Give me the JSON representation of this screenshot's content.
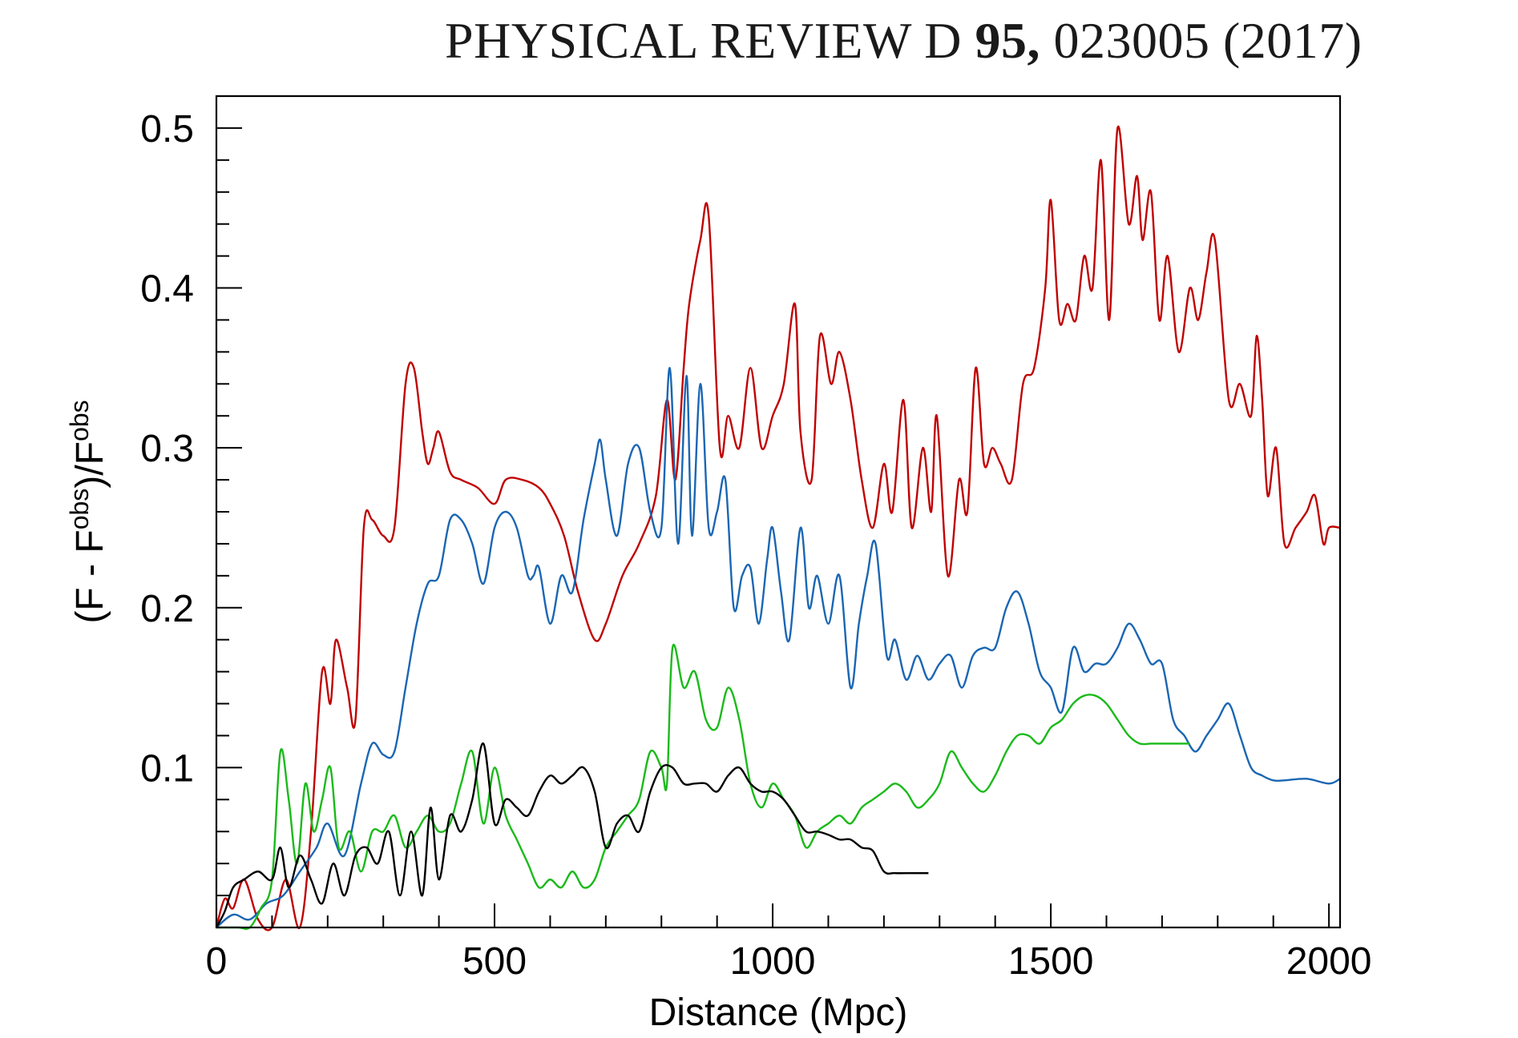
{
  "header": {
    "journal": "PHYSICAL REVIEW D",
    "volume": "95,",
    "article": "023005 (2017)"
  },
  "chart_data": {
    "type": "line",
    "title": "",
    "xlabel": "Distance (Mpc)",
    "ylabel_parts": {
      "open": "(F - F",
      "sup1": "obs",
      "mid": ")/F",
      "sup2": "obs"
    },
    "xlim": [
      0,
      2020
    ],
    "ylim": [
      0,
      0.52
    ],
    "x_ticks": [
      0,
      500,
      1000,
      1500,
      2000
    ],
    "x_tick_labels": [
      "0",
      "500",
      "1000",
      "1500",
      "2000"
    ],
    "y_ticks": [
      0.1,
      0.2,
      0.3,
      0.4,
      0.5
    ],
    "y_tick_labels": [
      "0.1",
      "0.2",
      "0.3",
      "0.4",
      "0.5"
    ],
    "x_minor_step": 100,
    "y_minor_step": 0.02,
    "series": [
      {
        "name": "red",
        "color": "#c00000",
        "x": [
          0,
          15,
          30,
          50,
          75,
          100,
          125,
          150,
          170,
          190,
          205,
          215,
          235,
          250,
          265,
          280,
          300,
          320,
          340,
          355,
          370,
          380,
          390,
          400,
          420,
          440,
          470,
          500,
          520,
          550,
          580,
          600,
          625,
          650,
          680,
          700,
          730,
          760,
          790,
          810,
          825,
          840,
          850,
          870,
          885,
          905,
          920,
          940,
          960,
          980,
          1000,
          1020,
          1040,
          1050,
          1070,
          1085,
          1105,
          1120,
          1140,
          1160,
          1180,
          1200,
          1215,
          1235,
          1250,
          1270,
          1285,
          1295,
          1315,
          1335,
          1350,
          1365,
          1380,
          1395,
          1410,
          1430,
          1450,
          1470,
          1490,
          1500,
          1515,
          1530,
          1545,
          1560,
          1575,
          1590,
          1605,
          1620,
          1640,
          1655,
          1665,
          1680,
          1695,
          1710,
          1730,
          1750,
          1765,
          1780,
          1795,
          1820,
          1840,
          1860,
          1870,
          1880,
          1890,
          1905,
          1920,
          1940,
          1960,
          1975,
          1990,
          2000,
          2020
        ],
        "y": [
          0,
          0.018,
          0.012,
          0.03,
          0.005,
          0.0,
          0.03,
          0.0,
          0.06,
          0.16,
          0.14,
          0.18,
          0.15,
          0.13,
          0.25,
          0.255,
          0.245,
          0.25,
          0.34,
          0.35,
          0.31,
          0.29,
          0.3,
          0.31,
          0.285,
          0.28,
          0.275,
          0.265,
          0.28,
          0.28,
          0.275,
          0.265,
          0.245,
          0.21,
          0.18,
          0.19,
          0.22,
          0.24,
          0.27,
          0.33,
          0.28,
          0.35,
          0.39,
          0.43,
          0.445,
          0.3,
          0.32,
          0.3,
          0.35,
          0.3,
          0.32,
          0.34,
          0.39,
          0.31,
          0.28,
          0.37,
          0.34,
          0.36,
          0.33,
          0.28,
          0.25,
          0.29,
          0.26,
          0.33,
          0.25,
          0.3,
          0.26,
          0.32,
          0.22,
          0.28,
          0.26,
          0.35,
          0.29,
          0.3,
          0.29,
          0.28,
          0.34,
          0.35,
          0.4,
          0.455,
          0.38,
          0.39,
          0.38,
          0.42,
          0.4,
          0.48,
          0.38,
          0.5,
          0.44,
          0.47,
          0.43,
          0.46,
          0.38,
          0.42,
          0.36,
          0.4,
          0.38,
          0.41,
          0.43,
          0.33,
          0.34,
          0.32,
          0.37,
          0.33,
          0.27,
          0.3,
          0.24,
          0.25,
          0.26,
          0.27,
          0.24,
          0.25,
          0.25
        ]
      },
      {
        "name": "blue",
        "color": "#1a66b3",
        "x": [
          0,
          30,
          60,
          90,
          120,
          150,
          180,
          200,
          230,
          260,
          280,
          300,
          320,
          340,
          360,
          380,
          400,
          420,
          440,
          460,
          480,
          500,
          520,
          540,
          560,
          570,
          580,
          600,
          620,
          640,
          660,
          680,
          690,
          700,
          720,
          740,
          760,
          780,
          800,
          815,
          830,
          845,
          855,
          870,
          885,
          900,
          915,
          930,
          945,
          960,
          975,
          990,
          1000,
          1015,
          1030,
          1050,
          1065,
          1080,
          1100,
          1120,
          1140,
          1155,
          1170,
          1185,
          1205,
          1220,
          1240,
          1260,
          1280,
          1300,
          1320,
          1340,
          1360,
          1380,
          1400,
          1420,
          1440,
          1460,
          1480,
          1500,
          1520,
          1540,
          1560,
          1580,
          1600,
          1620,
          1640,
          1660,
          1680,
          1700,
          1720,
          1740,
          1760,
          1780,
          1800,
          1820,
          1840,
          1860,
          1880,
          1900,
          1920,
          1960,
          2000,
          2020
        ],
        "y": [
          0,
          0.008,
          0.005,
          0.015,
          0.02,
          0.035,
          0.05,
          0.065,
          0.045,
          0.09,
          0.115,
          0.108,
          0.11,
          0.15,
          0.19,
          0.215,
          0.22,
          0.255,
          0.255,
          0.24,
          0.215,
          0.25,
          0.26,
          0.25,
          0.22,
          0.22,
          0.225,
          0.19,
          0.22,
          0.21,
          0.255,
          0.29,
          0.305,
          0.28,
          0.245,
          0.29,
          0.3,
          0.26,
          0.25,
          0.35,
          0.24,
          0.345,
          0.245,
          0.34,
          0.25,
          0.26,
          0.28,
          0.2,
          0.22,
          0.225,
          0.19,
          0.23,
          0.25,
          0.21,
          0.18,
          0.25,
          0.2,
          0.22,
          0.19,
          0.22,
          0.15,
          0.19,
          0.22,
          0.24,
          0.17,
          0.18,
          0.155,
          0.17,
          0.155,
          0.165,
          0.17,
          0.15,
          0.17,
          0.175,
          0.175,
          0.2,
          0.21,
          0.19,
          0.16,
          0.15,
          0.135,
          0.175,
          0.16,
          0.165,
          0.165,
          0.175,
          0.19,
          0.18,
          0.165,
          0.165,
          0.13,
          0.12,
          0.11,
          0.12,
          0.13,
          0.14,
          0.12,
          0.1,
          0.095,
          0.092,
          0.092,
          0.093,
          0.09,
          0.093
        ]
      },
      {
        "name": "green",
        "color": "#1aba1a",
        "x": [
          0,
          20,
          40,
          60,
          80,
          100,
          115,
          130,
          145,
          160,
          175,
          190,
          205,
          220,
          240,
          260,
          280,
          300,
          320,
          340,
          360,
          380,
          400,
          420,
          440,
          460,
          480,
          500,
          520,
          540,
          560,
          580,
          600,
          620,
          640,
          660,
          680,
          700,
          720,
          740,
          760,
          780,
          800,
          810,
          820,
          840,
          860,
          880,
          900,
          920,
          940,
          960,
          980,
          1000,
          1020,
          1040,
          1060,
          1080,
          1100,
          1120,
          1140,
          1160,
          1180,
          1200,
          1220,
          1240,
          1260,
          1280,
          1300,
          1320,
          1340,
          1360,
          1380,
          1400,
          1420,
          1440,
          1460,
          1480,
          1500,
          1520,
          1540,
          1560,
          1580,
          1600,
          1620,
          1640,
          1660,
          1680,
          1700,
          1720,
          1750
        ],
        "y": [
          0,
          0.0,
          0.0,
          0.0,
          0.012,
          0.03,
          0.11,
          0.08,
          0.04,
          0.09,
          0.06,
          0.08,
          0.1,
          0.05,
          0.06,
          0.035,
          0.06,
          0.06,
          0.07,
          0.05,
          0.06,
          0.07,
          0.06,
          0.065,
          0.09,
          0.11,
          0.065,
          0.1,
          0.07,
          0.055,
          0.04,
          0.025,
          0.03,
          0.025,
          0.035,
          0.025,
          0.03,
          0.05,
          0.06,
          0.07,
          0.08,
          0.11,
          0.1,
          0.09,
          0.175,
          0.15,
          0.16,
          0.13,
          0.125,
          0.15,
          0.13,
          0.09,
          0.075,
          0.09,
          0.08,
          0.07,
          0.05,
          0.06,
          0.065,
          0.07,
          0.065,
          0.075,
          0.08,
          0.085,
          0.09,
          0.085,
          0.075,
          0.08,
          0.09,
          0.11,
          0.1,
          0.09,
          0.085,
          0.095,
          0.11,
          0.12,
          0.12,
          0.115,
          0.125,
          0.13,
          0.14,
          0.145,
          0.145,
          0.14,
          0.13,
          0.12,
          0.115,
          0.115,
          0.115,
          0.115,
          0.115
        ]
      },
      {
        "name": "black",
        "color": "#000000",
        "x": [
          0,
          15,
          30,
          50,
          75,
          100,
          115,
          130,
          150,
          170,
          190,
          210,
          230,
          250,
          270,
          290,
          310,
          330,
          350,
          370,
          385,
          400,
          420,
          440,
          460,
          480,
          500,
          520,
          540,
          560,
          580,
          600,
          620,
          640,
          660,
          680,
          700,
          720,
          740,
          760,
          780,
          800,
          820,
          840,
          860,
          880,
          900,
          920,
          940,
          960,
          980,
          1000,
          1020,
          1040,
          1060,
          1080,
          1100,
          1120,
          1140,
          1160,
          1180,
          1200,
          1220,
          1250,
          1280
        ],
        "y": [
          0,
          0.01,
          0.025,
          0.03,
          0.035,
          0.03,
          0.05,
          0.025,
          0.045,
          0.03,
          0.015,
          0.04,
          0.02,
          0.045,
          0.05,
          0.04,
          0.06,
          0.02,
          0.06,
          0.02,
          0.075,
          0.03,
          0.07,
          0.06,
          0.08,
          0.115,
          0.065,
          0.08,
          0.075,
          0.07,
          0.085,
          0.095,
          0.09,
          0.095,
          0.1,
          0.085,
          0.05,
          0.065,
          0.07,
          0.06,
          0.085,
          0.1,
          0.1,
          0.09,
          0.09,
          0.09,
          0.085,
          0.095,
          0.1,
          0.09,
          0.085,
          0.085,
          0.08,
          0.07,
          0.06,
          0.06,
          0.058,
          0.055,
          0.055,
          0.05,
          0.048,
          0.035,
          0.034,
          0.034,
          0.034
        ]
      }
    ]
  }
}
